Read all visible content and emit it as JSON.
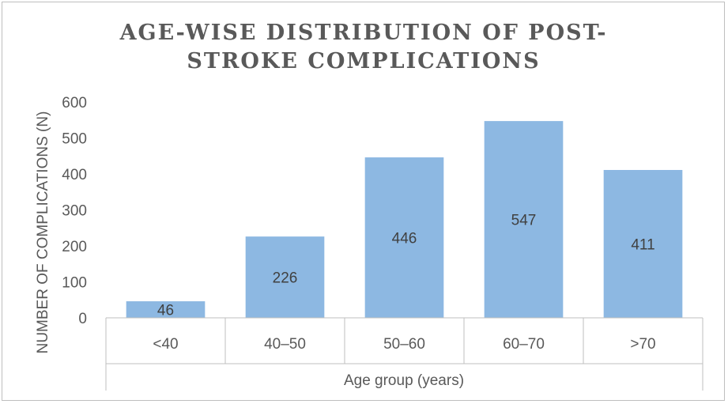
{
  "chart_data": {
    "type": "bar",
    "title": "AGE-WISE DISTRIBUTION OF POST-STROKE COMPLICATIONS",
    "xlabel": "Age group (years)",
    "ylabel": "NUMBER OF COMPLICATIONS (N)",
    "categories": [
      "<40",
      "40–50",
      "50–60",
      "60–70",
      ">70"
    ],
    "values": [
      46,
      226,
      446,
      547,
      411
    ],
    "data_labels": [
      "46",
      "226",
      "446",
      "547",
      "411"
    ],
    "yticks": [
      0,
      100,
      200,
      300,
      400,
      500,
      600
    ],
    "ylim": [
      0,
      600
    ],
    "grid": false,
    "legend": "none",
    "colors": {
      "bar": "#8db8e2",
      "axis": "#bfbfbf"
    }
  }
}
